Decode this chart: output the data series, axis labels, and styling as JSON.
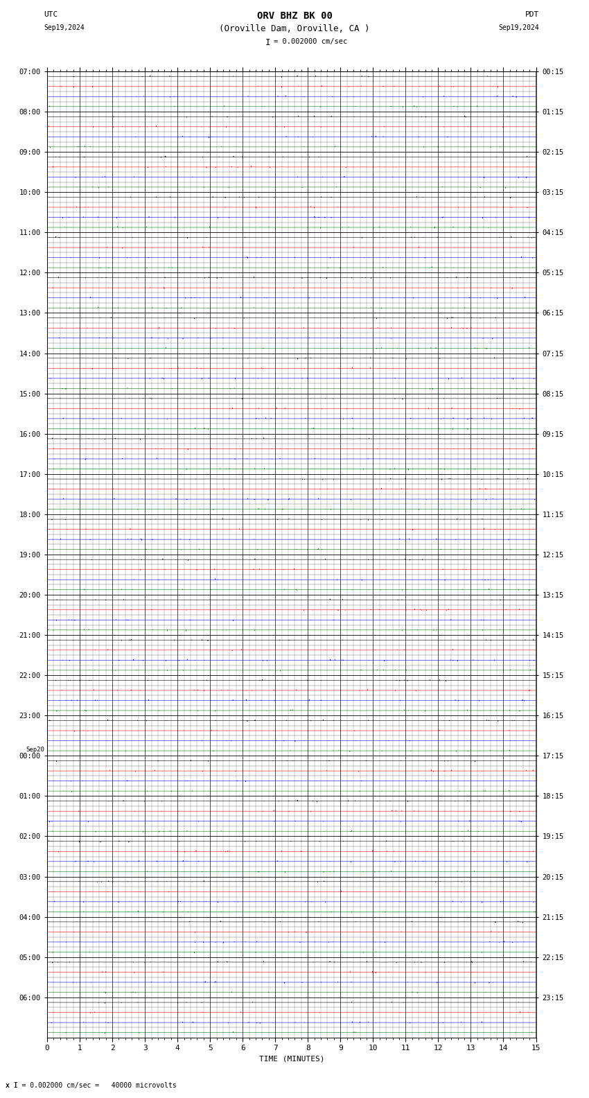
{
  "title_line1": "ORV BHZ BK 00",
  "title_line2": "(Oroville Dam, Oroville, CA )",
  "scale_label": "I = 0.002000 cm/sec",
  "bottom_label": "x I = 0.002000 cm/sec =   40000 microvolts",
  "utc_label": "UTC",
  "utc_date": "Sep19,2024",
  "pdt_label": "PDT",
  "pdt_date": "Sep19,2024",
  "xlabel": "TIME (MINUTES)",
  "left_times": [
    "07:00",
    "08:00",
    "09:00",
    "10:00",
    "11:00",
    "12:00",
    "13:00",
    "14:00",
    "15:00",
    "16:00",
    "17:00",
    "18:00",
    "19:00",
    "20:00",
    "21:00",
    "22:00",
    "23:00",
    "00:00",
    "01:00",
    "02:00",
    "03:00",
    "04:00",
    "05:00",
    "06:00"
  ],
  "sep20_row": 17,
  "right_times": [
    "00:15",
    "01:15",
    "02:15",
    "03:15",
    "04:15",
    "05:15",
    "06:15",
    "07:15",
    "08:15",
    "09:15",
    "10:15",
    "11:15",
    "12:15",
    "13:15",
    "14:15",
    "15:15",
    "16:15",
    "17:15",
    "18:15",
    "19:15",
    "20:15",
    "21:15",
    "22:15",
    "23:15"
  ],
  "num_rows": 24,
  "traces_per_row": 4,
  "trace_colors": [
    "black",
    "red",
    "blue",
    "green"
  ],
  "xmin": 0,
  "xmax": 15,
  "background_color": "white",
  "fig_width": 8.5,
  "fig_height": 15.84,
  "dpi": 100
}
